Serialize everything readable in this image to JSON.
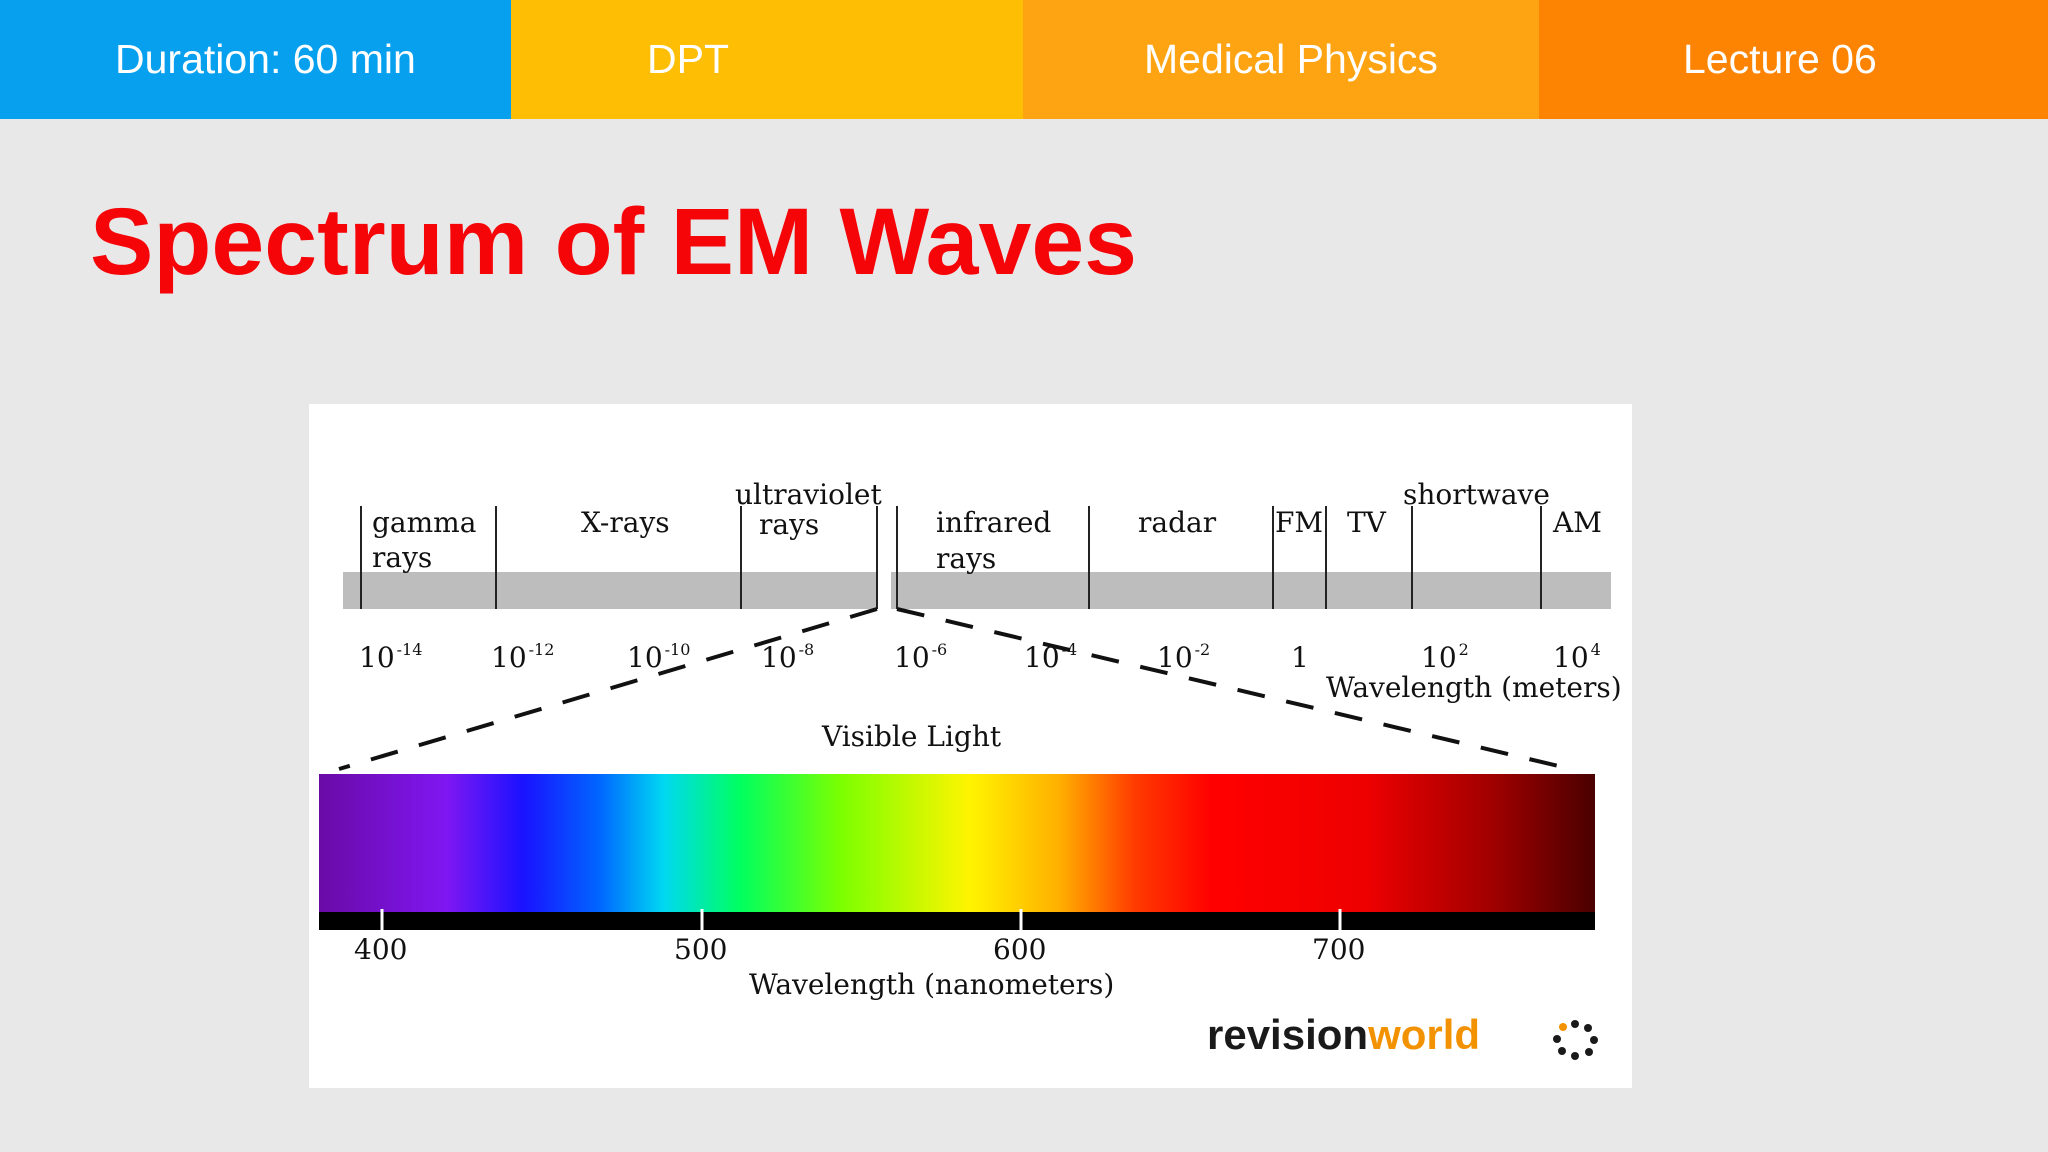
{
  "header": {
    "duration": "Duration: 60 min",
    "program": "DPT",
    "subject": "Medical Physics",
    "lecture": "Lecture 06"
  },
  "slide": {
    "title": "Spectrum of EM Waves"
  },
  "diagram": {
    "bands": [
      {
        "lines": [
          "gamma",
          "rays"
        ]
      },
      {
        "lines": [
          "X-rays"
        ]
      },
      {
        "lines": [
          "ultraviolet",
          "rays"
        ]
      },
      {
        "lines": [
          "infrared",
          "rays"
        ]
      },
      {
        "lines": [
          "radar"
        ]
      },
      {
        "lines": [
          "FM"
        ]
      },
      {
        "lines": [
          "TV"
        ]
      },
      {
        "lines": [
          "shortwave"
        ]
      },
      {
        "lines": [
          "AM"
        ]
      }
    ],
    "wavelength_ticks": [
      {
        "base": "10",
        "exp": "-14"
      },
      {
        "base": "10",
        "exp": "-12"
      },
      {
        "base": "10",
        "exp": "-10"
      },
      {
        "base": "10",
        "exp": "-8"
      },
      {
        "base": "10",
        "exp": "-6"
      },
      {
        "base": "10",
        "exp": "-4"
      },
      {
        "base": "10",
        "exp": "-2"
      },
      {
        "base": "1",
        "exp": ""
      },
      {
        "base": "10",
        "exp": "2"
      },
      {
        "base": "10",
        "exp": "4"
      }
    ],
    "wavelength_label": "Wavelength (meters)",
    "visible_label": "Visible Light",
    "nm_ticks": [
      "400",
      "500",
      "600",
      "700"
    ],
    "nm_label": "Wavelength (nanometers)",
    "logo": {
      "part1": "revision",
      "part2": "world",
      "color1": "#1a1a1a",
      "color2": "#f39200"
    }
  },
  "colors": {
    "bar_duration": "#06a0ee",
    "bar_program": "#fdbe03",
    "bar_subject": "#fea311",
    "bar_lecture": "#fd8303",
    "title": "#f50408",
    "background": "#e8e8e9"
  }
}
